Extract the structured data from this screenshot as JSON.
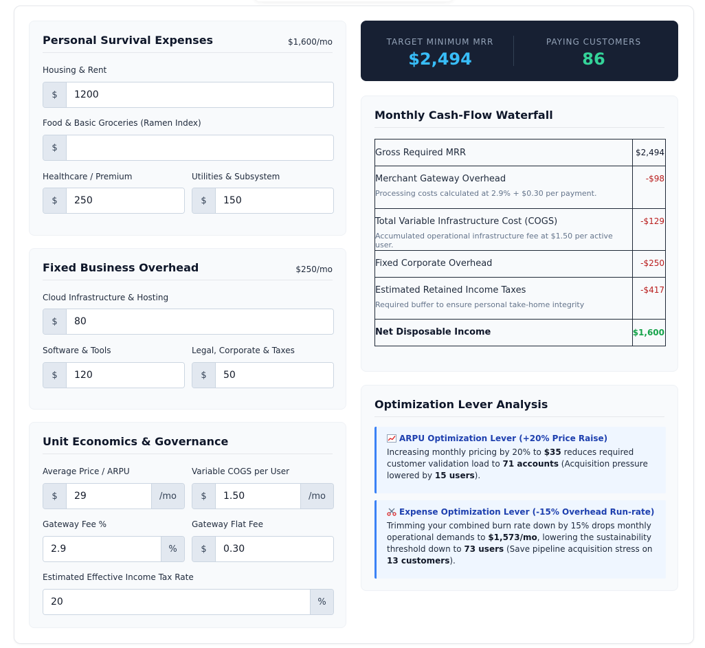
{
  "personal": {
    "title": "Personal Survival Expenses",
    "subtotal": "$1,600/mo",
    "housing": {
      "label": "Housing & Rent",
      "value": "1200"
    },
    "food": {
      "label": "Food & Basic Groceries (Ramen Index)",
      "value": ""
    },
    "healthcare": {
      "label": "Healthcare / Premium",
      "value": "250"
    },
    "utilities": {
      "label": "Utilities & Subsystem",
      "value": "150"
    }
  },
  "business": {
    "title": "Fixed Business Overhead",
    "subtotal": "$250/mo",
    "cloud": {
      "label": "Cloud Infrastructure & Hosting",
      "value": "80"
    },
    "software": {
      "label": "Software & Tools",
      "value": "120"
    },
    "legal": {
      "label": "Legal, Corporate & Taxes",
      "value": "50"
    }
  },
  "unit": {
    "title": "Unit Economics & Governance",
    "arpu": {
      "label": "Average Price / ARPU",
      "value": "29",
      "suffix": "/mo"
    },
    "cogs": {
      "label": "Variable COGS per User",
      "value": "1.50",
      "suffix": "/mo"
    },
    "gateway_pct": {
      "label": "Gateway Fee %",
      "value": "2.9",
      "suffix": "%"
    },
    "gateway_flat": {
      "label": "Gateway Flat Fee",
      "value": "0.30"
    },
    "tax": {
      "label": "Estimated Effective Income Tax Rate",
      "value": "20",
      "suffix": "%"
    }
  },
  "currency_prefix": "$",
  "kpi": {
    "mrr_label": "TARGET MINIMUM MRR",
    "mrr_value": "$2,494",
    "customers_label": "PAYING CUSTOMERS",
    "customers_value": "86",
    "mrr_color": "#38bdf8",
    "customers_color": "#34d399"
  },
  "waterfall": {
    "title": "Monthly Cash-Flow Waterfall",
    "rows": [
      {
        "label": "Gross Required MRR",
        "note": "",
        "amount": "$2,494",
        "kind": "gross"
      },
      {
        "label": "Merchant Gateway Overhead",
        "note": "Processing costs calculated at 2.9% + $0.30 per payment.",
        "amount": "-$98",
        "kind": "neg"
      },
      {
        "label": "Total Variable Infrastructure Cost (COGS)",
        "note": "Accumulated operational infrastructure fee at $1.50 per active user.",
        "amount": "-$129",
        "kind": "neg"
      },
      {
        "label": "Fixed Corporate Overhead",
        "note": "",
        "amount": "-$250",
        "kind": "neg"
      },
      {
        "label": "Estimated Retained Income Taxes",
        "note": "Required buffer to ensure personal take-home integrity",
        "amount": "-$417",
        "kind": "neg"
      },
      {
        "label": "Net Disposable Income",
        "note": "",
        "amount": "$1,600",
        "kind": "net"
      }
    ]
  },
  "levers": {
    "title": "Optimization Lever Analysis",
    "arpu": {
      "icon": "chart-increasing-icon",
      "title": "ARPU Optimization Lever (+20% Price Raise)",
      "t1": "Increasing monthly pricing by 20% to ",
      "b1": "$35",
      "t2": " reduces required customer validation load to ",
      "b2": "71 accounts",
      "t3": " (Acquisition pressure lowered by ",
      "b3": "15 users",
      "t4": ")."
    },
    "expense": {
      "icon": "scissors-icon",
      "title": "Expense Optimization Lever (-15% Overhead Run-rate)",
      "t1": "Trimming your combined burn rate down by 15% drops monthly operational demands to ",
      "b1": "$1,573/mo",
      "t2": ", lowering the sustainability threshold down to ",
      "b2": "73 users",
      "t3": " (Save pipeline acquisition stress on ",
      "b3": "13 customers",
      "t4": ")."
    }
  }
}
